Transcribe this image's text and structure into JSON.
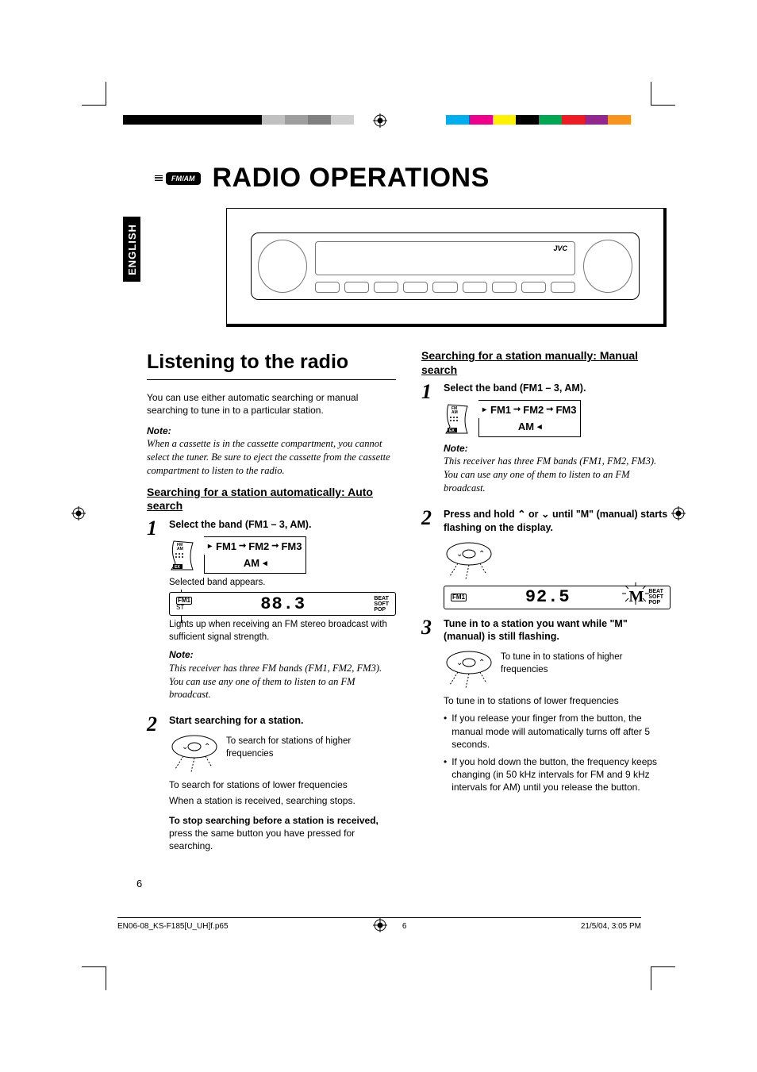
{
  "print": {
    "colorbar": [
      "#000000",
      "#000000",
      "#000000",
      "#000000",
      "#000000",
      "#000000",
      "#c0c0c0",
      "#9e9e9e",
      "#808080",
      "#cfcfcf",
      "#ffffff",
      "#ffffff",
      "#ffffff",
      "#ffffff",
      "#00aeef",
      "#ec008c",
      "#fff200",
      "#000000",
      "#00a651",
      "#ed1c24",
      "#92278f",
      "#f7941d"
    ],
    "filename": "EN06-08_KS-F185[U_UH]f.p65",
    "pageprint": "6",
    "timestamp": "21/5/04, 3:05 PM"
  },
  "header": {
    "badge_text": "FM/AM",
    "title": "RADIO OPERATIONS"
  },
  "lang_tab": "ENGLISH",
  "radio_brand": "JVC",
  "left": {
    "section_title": "Listening to the radio",
    "intro": "You can use either automatic searching or manual searching to tune in to a particular station.",
    "note1_label": "Note:",
    "note1_body": "When a cassette is in the cassette compartment, you cannot select the tuner. Be sure to eject the cassette from the cassette compartment to listen to the radio.",
    "subhead": "Searching for a station automatically: Auto search",
    "step1_head": "Select the band (FM1 – 3, AM).",
    "fmam_labels": {
      "fm": "FM",
      "am": "AM",
      "ex": "EX"
    },
    "band_fm1": "FM1",
    "band_fm2": "FM2",
    "band_fm3": "FM3",
    "band_am": "AM",
    "selected_caption": "Selected band appears.",
    "lcd1": {
      "band": "FM1",
      "st": "ST",
      "freq": "88.3",
      "beat": "BEAT",
      "soft": "SOFT",
      "pop": "POP"
    },
    "lights_caption": "Lights up when receiving an FM stereo broadcast with sufficient signal strength.",
    "note2_label": "Note:",
    "note2_body": "This receiver has three FM bands (FM1, FM2, FM3). You can use any one of them to listen to an FM broadcast.",
    "step2_head": "Start searching for a station.",
    "higher_caption": "To search for stations of higher frequencies",
    "lower_caption": "To search for stations of lower frequencies",
    "received_caption": "When a station is received, searching stops.",
    "stop_bold": "To stop searching before a station is received,",
    "stop_rest": " press the same button you have pressed for searching."
  },
  "right": {
    "subhead": "Searching for a station manually: Manual search",
    "step1_head": "Select the band (FM1 – 3, AM).",
    "band_fm1": "FM1",
    "band_fm2": "FM2",
    "band_fm3": "FM3",
    "band_am": "AM",
    "note1_label": "Note:",
    "note1_body": "This receiver has three FM bands (FM1, FM2, FM3). You can use any one of them to listen to an FM broadcast.",
    "step2_head_a": "Press and hold ",
    "step2_head_b": " or ",
    "step2_head_c": " until \"M\" (manual) starts flashing on the display.",
    "lcd2": {
      "band": "FM1",
      "freq": "92.5",
      "m": "M",
      "beat": "BEAT",
      "soft": "SOFT",
      "pop": "POP"
    },
    "step3_head": "Tune in to a station you want while \"M\" (manual) is still flashing.",
    "higher_caption": "To tune in to stations of higher frequencies",
    "lower_caption": "To tune in to stations of lower frequencies",
    "bullet1": "If you release your finger from the button, the manual mode will automatically turns off after 5 seconds.",
    "bullet2": "If you hold down the button, the frequency keeps changing (in 50 kHz intervals for FM and 9 kHz intervals for AM) until you release the button."
  },
  "page_number": "6"
}
